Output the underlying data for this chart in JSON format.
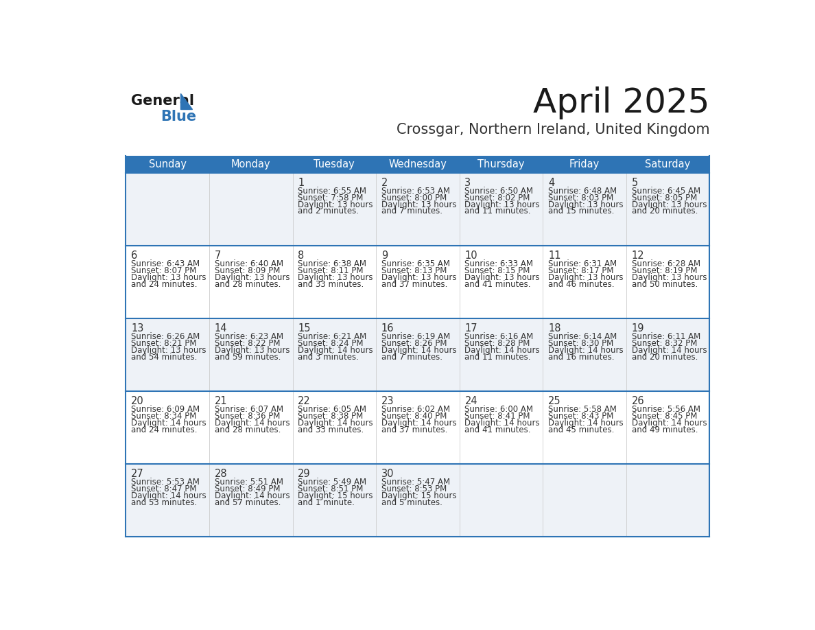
{
  "title": "April 2025",
  "subtitle": "Crossgar, Northern Ireland, United Kingdom",
  "header_bg_color": "#2e74b5",
  "header_text_color": "#ffffff",
  "row_bg_even": "#eef2f7",
  "row_bg_odd": "#ffffff",
  "border_color": "#2e74b5",
  "text_color": "#333333",
  "day_names": [
    "Sunday",
    "Monday",
    "Tuesday",
    "Wednesday",
    "Thursday",
    "Friday",
    "Saturday"
  ],
  "weeks": [
    [
      {
        "day": "",
        "lines": []
      },
      {
        "day": "",
        "lines": []
      },
      {
        "day": "1",
        "lines": [
          "Sunrise: 6:55 AM",
          "Sunset: 7:58 PM",
          "Daylight: 13 hours",
          "and 2 minutes."
        ]
      },
      {
        "day": "2",
        "lines": [
          "Sunrise: 6:53 AM",
          "Sunset: 8:00 PM",
          "Daylight: 13 hours",
          "and 7 minutes."
        ]
      },
      {
        "day": "3",
        "lines": [
          "Sunrise: 6:50 AM",
          "Sunset: 8:02 PM",
          "Daylight: 13 hours",
          "and 11 minutes."
        ]
      },
      {
        "day": "4",
        "lines": [
          "Sunrise: 6:48 AM",
          "Sunset: 8:03 PM",
          "Daylight: 13 hours",
          "and 15 minutes."
        ]
      },
      {
        "day": "5",
        "lines": [
          "Sunrise: 6:45 AM",
          "Sunset: 8:05 PM",
          "Daylight: 13 hours",
          "and 20 minutes."
        ]
      }
    ],
    [
      {
        "day": "6",
        "lines": [
          "Sunrise: 6:43 AM",
          "Sunset: 8:07 PM",
          "Daylight: 13 hours",
          "and 24 minutes."
        ]
      },
      {
        "day": "7",
        "lines": [
          "Sunrise: 6:40 AM",
          "Sunset: 8:09 PM",
          "Daylight: 13 hours",
          "and 28 minutes."
        ]
      },
      {
        "day": "8",
        "lines": [
          "Sunrise: 6:38 AM",
          "Sunset: 8:11 PM",
          "Daylight: 13 hours",
          "and 33 minutes."
        ]
      },
      {
        "day": "9",
        "lines": [
          "Sunrise: 6:35 AM",
          "Sunset: 8:13 PM",
          "Daylight: 13 hours",
          "and 37 minutes."
        ]
      },
      {
        "day": "10",
        "lines": [
          "Sunrise: 6:33 AM",
          "Sunset: 8:15 PM",
          "Daylight: 13 hours",
          "and 41 minutes."
        ]
      },
      {
        "day": "11",
        "lines": [
          "Sunrise: 6:31 AM",
          "Sunset: 8:17 PM",
          "Daylight: 13 hours",
          "and 46 minutes."
        ]
      },
      {
        "day": "12",
        "lines": [
          "Sunrise: 6:28 AM",
          "Sunset: 8:19 PM",
          "Daylight: 13 hours",
          "and 50 minutes."
        ]
      }
    ],
    [
      {
        "day": "13",
        "lines": [
          "Sunrise: 6:26 AM",
          "Sunset: 8:21 PM",
          "Daylight: 13 hours",
          "and 54 minutes."
        ]
      },
      {
        "day": "14",
        "lines": [
          "Sunrise: 6:23 AM",
          "Sunset: 8:22 PM",
          "Daylight: 13 hours",
          "and 59 minutes."
        ]
      },
      {
        "day": "15",
        "lines": [
          "Sunrise: 6:21 AM",
          "Sunset: 8:24 PM",
          "Daylight: 14 hours",
          "and 3 minutes."
        ]
      },
      {
        "day": "16",
        "lines": [
          "Sunrise: 6:19 AM",
          "Sunset: 8:26 PM",
          "Daylight: 14 hours",
          "and 7 minutes."
        ]
      },
      {
        "day": "17",
        "lines": [
          "Sunrise: 6:16 AM",
          "Sunset: 8:28 PM",
          "Daylight: 14 hours",
          "and 11 minutes."
        ]
      },
      {
        "day": "18",
        "lines": [
          "Sunrise: 6:14 AM",
          "Sunset: 8:30 PM",
          "Daylight: 14 hours",
          "and 16 minutes."
        ]
      },
      {
        "day": "19",
        "lines": [
          "Sunrise: 6:11 AM",
          "Sunset: 8:32 PM",
          "Daylight: 14 hours",
          "and 20 minutes."
        ]
      }
    ],
    [
      {
        "day": "20",
        "lines": [
          "Sunrise: 6:09 AM",
          "Sunset: 8:34 PM",
          "Daylight: 14 hours",
          "and 24 minutes."
        ]
      },
      {
        "day": "21",
        "lines": [
          "Sunrise: 6:07 AM",
          "Sunset: 8:36 PM",
          "Daylight: 14 hours",
          "and 28 minutes."
        ]
      },
      {
        "day": "22",
        "lines": [
          "Sunrise: 6:05 AM",
          "Sunset: 8:38 PM",
          "Daylight: 14 hours",
          "and 33 minutes."
        ]
      },
      {
        "day": "23",
        "lines": [
          "Sunrise: 6:02 AM",
          "Sunset: 8:40 PM",
          "Daylight: 14 hours",
          "and 37 minutes."
        ]
      },
      {
        "day": "24",
        "lines": [
          "Sunrise: 6:00 AM",
          "Sunset: 8:41 PM",
          "Daylight: 14 hours",
          "and 41 minutes."
        ]
      },
      {
        "day": "25",
        "lines": [
          "Sunrise: 5:58 AM",
          "Sunset: 8:43 PM",
          "Daylight: 14 hours",
          "and 45 minutes."
        ]
      },
      {
        "day": "26",
        "lines": [
          "Sunrise: 5:56 AM",
          "Sunset: 8:45 PM",
          "Daylight: 14 hours",
          "and 49 minutes."
        ]
      }
    ],
    [
      {
        "day": "27",
        "lines": [
          "Sunrise: 5:53 AM",
          "Sunset: 8:47 PM",
          "Daylight: 14 hours",
          "and 53 minutes."
        ]
      },
      {
        "day": "28",
        "lines": [
          "Sunrise: 5:51 AM",
          "Sunset: 8:49 PM",
          "Daylight: 14 hours",
          "and 57 minutes."
        ]
      },
      {
        "day": "29",
        "lines": [
          "Sunrise: 5:49 AM",
          "Sunset: 8:51 PM",
          "Daylight: 15 hours",
          "and 1 minute."
        ]
      },
      {
        "day": "30",
        "lines": [
          "Sunrise: 5:47 AM",
          "Sunset: 8:53 PM",
          "Daylight: 15 hours",
          "and 5 minutes."
        ]
      },
      {
        "day": "",
        "lines": []
      },
      {
        "day": "",
        "lines": []
      },
      {
        "day": "",
        "lines": []
      }
    ]
  ]
}
